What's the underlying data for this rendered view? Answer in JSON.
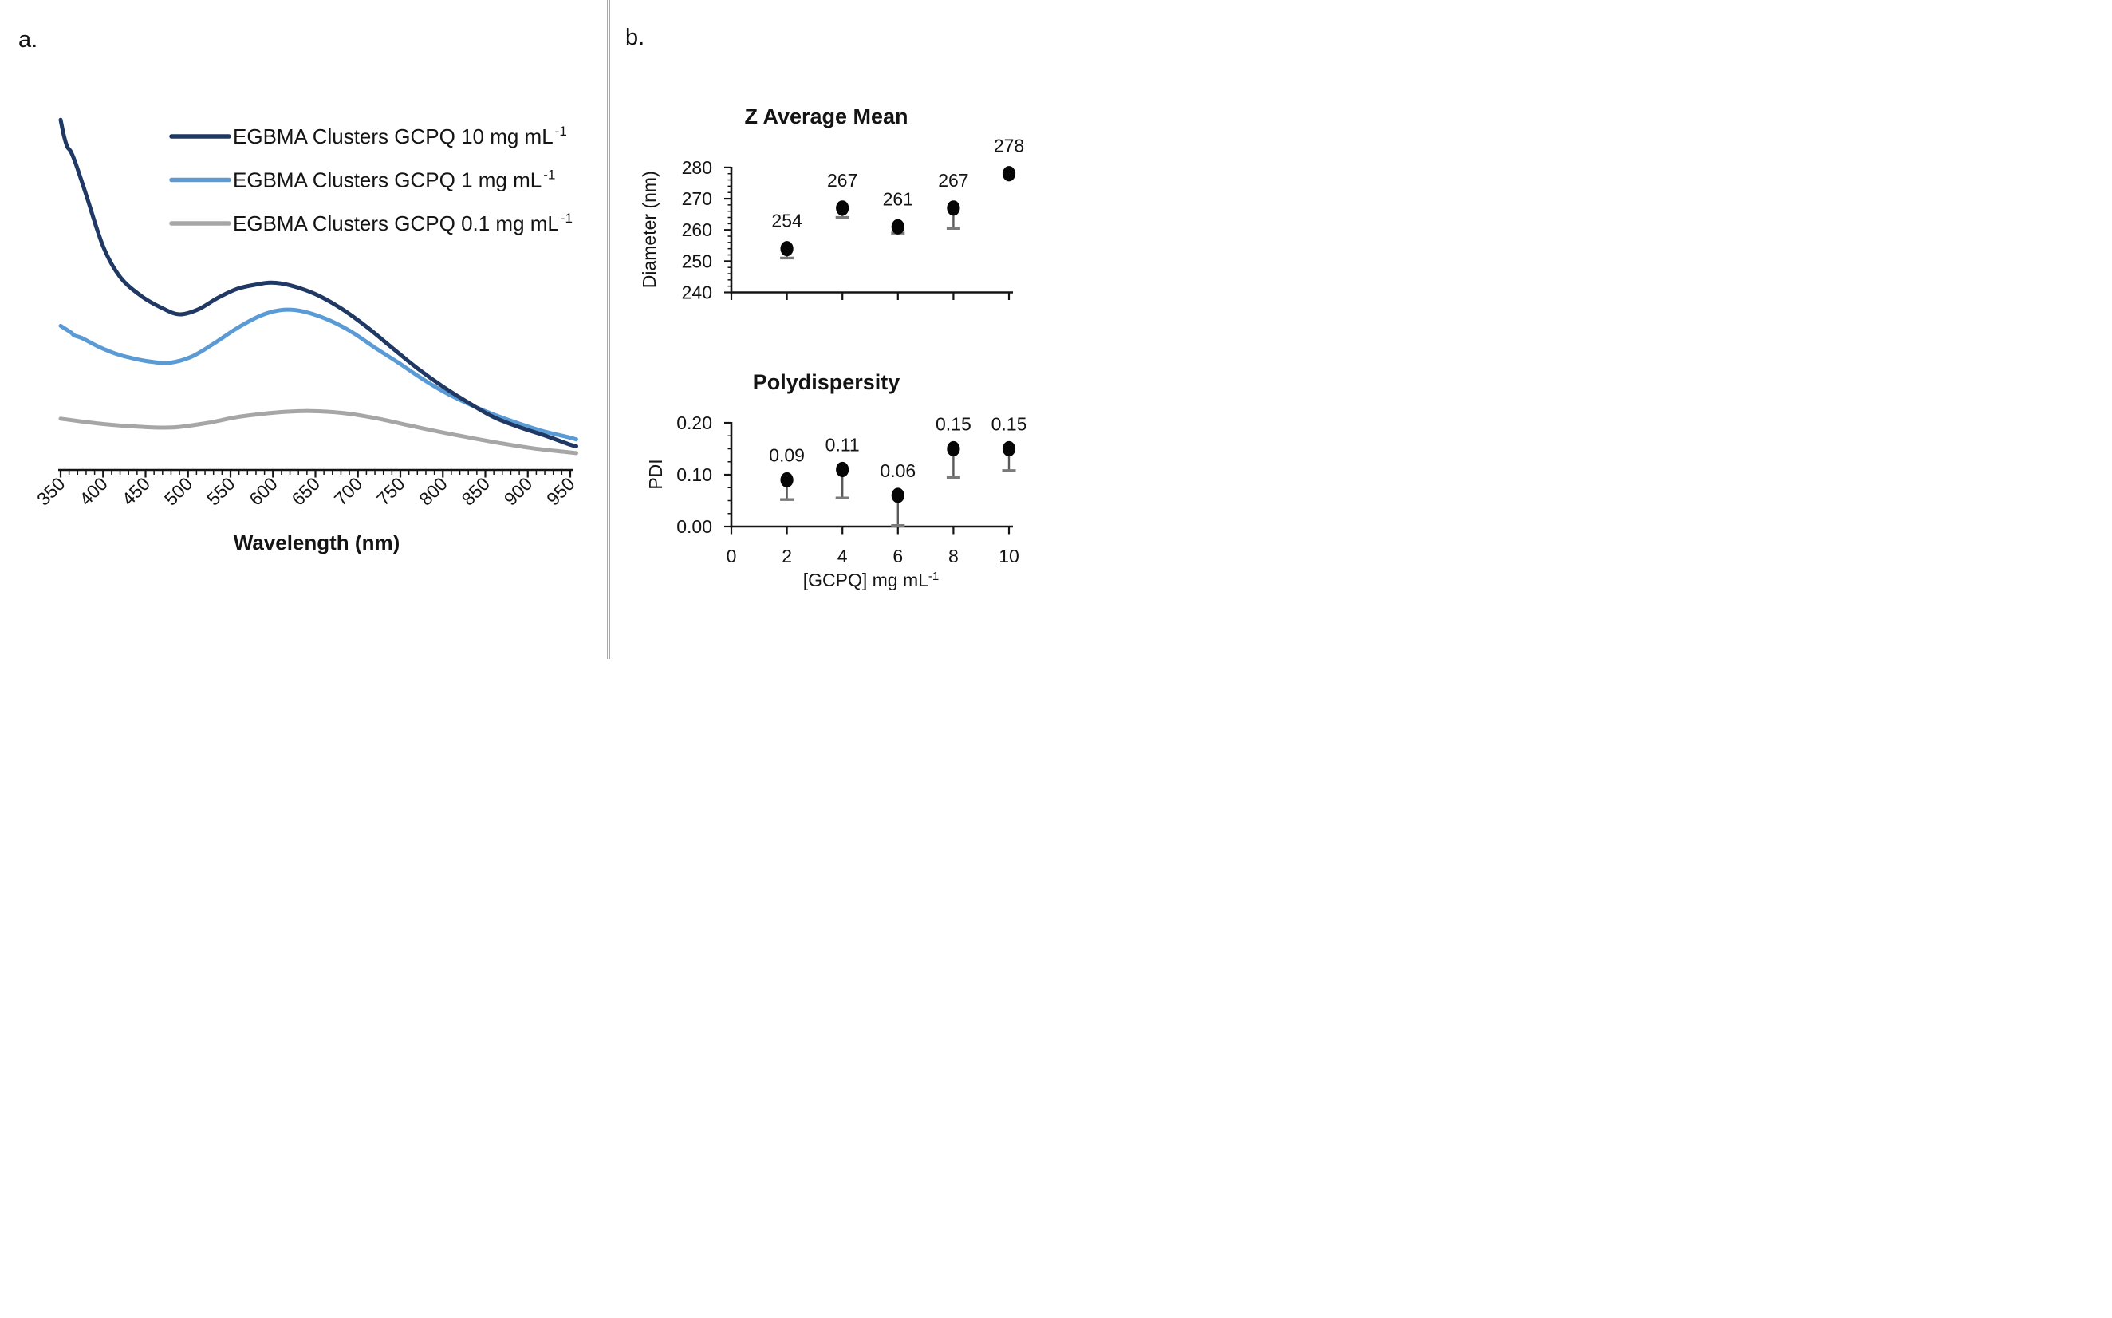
{
  "page": {
    "background": "#ffffff",
    "panel_a_label": "a.",
    "panel_b_label": "b."
  },
  "panel_a": {
    "xlabel": "Wavelength (nm)",
    "legend": [
      {
        "label": "EGBMA Clusters GCPQ 10 mg mL",
        "sup": "-1",
        "color": "#1f3864"
      },
      {
        "label": "EGBMA Clusters GCPQ 1 mg mL",
        "sup": "-1",
        "color": "#5b9bd5"
      },
      {
        "label": "EGBMA Clusters GCPQ 0.1 mg mL",
        "sup": "-1",
        "color": "#a6a6a6"
      }
    ]
  },
  "panel_b": {
    "zaverage_title": "Z Average Mean",
    "pdi_title": "Polydispersity"
  },
  "chart_data": [
    {
      "id": "spectra",
      "type": "line",
      "title": "",
      "xlabel": "Wavelength (nm)",
      "ylabel": "",
      "xlim": [
        350,
        958
      ],
      "x_major_ticks": [
        350,
        400,
        450,
        500,
        550,
        600,
        650,
        700,
        750,
        800,
        850,
        900,
        950
      ],
      "x_minor_step": 10,
      "y_axis_visible": false,
      "y_units": "normalized intensity (no y axis shown in figure)",
      "legend_position": "top-right-inside",
      "series": [
        {
          "name": "EGBMA Clusters GCPQ 10 mg mL⁻¹",
          "color": "#1f3864",
          "x": [
            350,
            354,
            358,
            362,
            368,
            380,
            400,
            420,
            445,
            470,
            490,
            512,
            535,
            558,
            580,
            598,
            620,
            650,
            680,
            710,
            740,
            770,
            800,
            830,
            860,
            890,
            920,
            950,
            957
          ],
          "y": [
            0.916,
            0.873,
            0.845,
            0.833,
            0.8,
            0.72,
            0.585,
            0.505,
            0.455,
            0.423,
            0.407,
            0.42,
            0.45,
            0.474,
            0.485,
            0.49,
            0.483,
            0.46,
            0.423,
            0.375,
            0.32,
            0.266,
            0.218,
            0.176,
            0.138,
            0.112,
            0.09,
            0.066,
            0.062
          ]
        },
        {
          "name": "EGBMA Clusters GCPQ 1 mg mL⁻¹",
          "color": "#5b9bd5",
          "x": [
            350,
            362,
            366,
            375,
            396,
            419,
            443,
            460,
            478,
            504,
            530,
            560,
            588,
            613,
            635,
            664,
            692,
            720,
            748,
            776,
            804,
            833,
            861,
            889,
            917,
            945,
            957
          ],
          "y": [
            0.377,
            0.36,
            0.352,
            0.345,
            0.321,
            0.301,
            0.288,
            0.282,
            0.28,
            0.296,
            0.33,
            0.374,
            0.406,
            0.419,
            0.415,
            0.394,
            0.362,
            0.32,
            0.28,
            0.238,
            0.201,
            0.17,
            0.144,
            0.122,
            0.102,
            0.087,
            0.08
          ]
        },
        {
          "name": "EGBMA Clusters GCPQ 0.1 mg mL⁻¹",
          "color": "#a6a6a6",
          "x": [
            350,
            396,
            443,
            482,
            523,
            560,
            607,
            644,
            682,
            720,
            757,
            795,
            833,
            870,
            908,
            945,
            957
          ],
          "y": [
            0.134,
            0.121,
            0.113,
            0.111,
            0.123,
            0.139,
            0.151,
            0.154,
            0.149,
            0.136,
            0.118,
            0.1,
            0.084,
            0.069,
            0.056,
            0.047,
            0.044
          ]
        }
      ]
    },
    {
      "id": "z_average",
      "type": "scatter",
      "title": "Z Average Mean",
      "ylabel": "Diameter (nm)",
      "xlabel": "",
      "x": [
        2,
        4,
        6,
        8,
        10
      ],
      "values": [
        254,
        267,
        261,
        267,
        278
      ],
      "point_labels": [
        "254",
        "267",
        "261",
        "267",
        "278"
      ],
      "err_lower": [
        3,
        3,
        2,
        6.5,
        0
      ],
      "ylim": [
        240,
        280
      ],
      "y_major_ticks": [
        240,
        250,
        260,
        270,
        280
      ],
      "y_tick_labels": [
        "240",
        "250",
        "260",
        "270",
        "280"
      ],
      "y_minor_step": 2,
      "x_ticks": [
        0,
        2,
        4,
        6,
        8,
        10
      ],
      "x_tick_labels_visible": false,
      "marker_color": "#060606",
      "error_bar_color": "#7a7a7a"
    },
    {
      "id": "polydispersity",
      "type": "scatter",
      "title": "Polydispersity",
      "ylabel": "PDI",
      "xlabel": "[GCPQ] mg mL",
      "xlabel_sup": "-1",
      "x": [
        2,
        4,
        6,
        8,
        10
      ],
      "values": [
        0.09,
        0.11,
        0.06,
        0.15,
        0.15
      ],
      "point_labels": [
        "0.09",
        "0.11",
        "0.06",
        "0.15",
        "0.15"
      ],
      "err_lower": [
        0.038,
        0.055,
        0.058,
        0.055,
        0.042
      ],
      "ylim": [
        0,
        0.2
      ],
      "y_major_ticks": [
        0,
        0.1,
        0.2
      ],
      "y_tick_labels": [
        "0.00",
        "0.10",
        "0.20"
      ],
      "y_minor_step": 0.025,
      "x_ticks": [
        0,
        2,
        4,
        6,
        8,
        10
      ],
      "x_tick_labels": [
        "0",
        "2",
        "4",
        "6",
        "8",
        "10"
      ],
      "marker_color": "#060606",
      "error_bar_color": "#7a7a7a"
    }
  ]
}
